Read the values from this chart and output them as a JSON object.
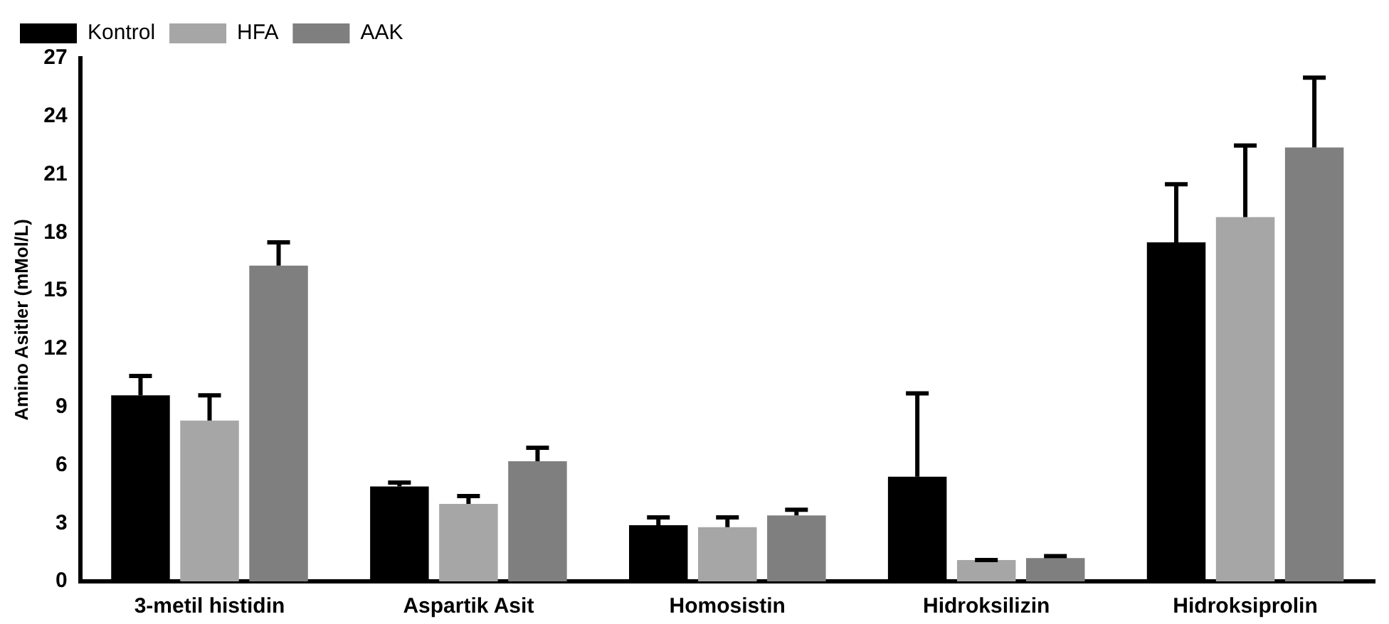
{
  "chart_data": {
    "type": "bar",
    "ylabel": "Amino Asitler (mMol/L)",
    "categories": [
      "3-metil histidin",
      "Aspartik Asit",
      "Homosistin",
      "Hidroksilizin",
      "Hidroksiprolin"
    ],
    "series": [
      {
        "name": "Kontrol",
        "color": "#000000",
        "values": [
          9.6,
          4.9,
          2.9,
          5.4,
          17.5
        ],
        "errors": [
          [
            9.6,
            10.6
          ],
          [
            4.9,
            5.1
          ],
          [
            2.9,
            3.3
          ],
          [
            5.4,
            9.7
          ],
          [
            17.5,
            20.5
          ]
        ]
      },
      {
        "name": "HFA",
        "color": "#a6a6a6",
        "values": [
          8.3,
          4.0,
          2.8,
          1.1,
          18.8
        ],
        "errors": [
          [
            8.3,
            9.6
          ],
          [
            4.0,
            4.4
          ],
          [
            2.8,
            3.3
          ],
          [
            1.1,
            1.1
          ],
          [
            18.8,
            22.5
          ]
        ]
      },
      {
        "name": "AAK",
        "color": "#7f7f7f",
        "values": [
          16.3,
          6.2,
          3.4,
          1.2,
          22.4
        ],
        "errors": [
          [
            16.3,
            17.5
          ],
          [
            6.2,
            6.9
          ],
          [
            3.4,
            3.7
          ],
          [
            1.2,
            1.3
          ],
          [
            22.4,
            26.0
          ]
        ]
      }
    ],
    "ylim": [
      0,
      27
    ],
    "yticks": [
      0,
      3,
      6,
      9,
      12,
      15,
      18,
      21,
      24,
      27
    ],
    "grid": false,
    "legend": "top left"
  }
}
